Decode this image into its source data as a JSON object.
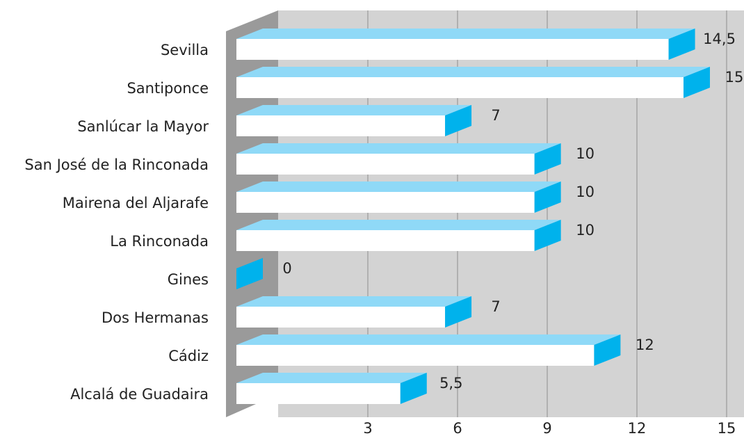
{
  "chart_data": {
    "type": "bar3d_horizontal",
    "categories": [
      "Sevilla",
      "Santiponce",
      "Sanlúcar la Mayor",
      "San José de la Rinconada",
      "Mairena del Aljarafe",
      "La Rinconada",
      "Gines",
      "Dos Hermanas",
      "Cádiz",
      "Alcalá de Guadaira"
    ],
    "values": [
      14.5,
      15,
      7,
      10,
      10,
      10,
      0,
      7,
      12,
      5.5
    ],
    "value_labels": [
      "14,5",
      "15",
      "7",
      "10",
      "10",
      "10",
      "0",
      "7",
      "12",
      "5,5"
    ],
    "xlim": [
      0,
      15
    ],
    "xticks": [
      3,
      6,
      9,
      12,
      15
    ],
    "grid": true,
    "colors": {
      "front": "#ffffff",
      "top": "#8fd9f7",
      "side": "#00b2ec"
    }
  }
}
